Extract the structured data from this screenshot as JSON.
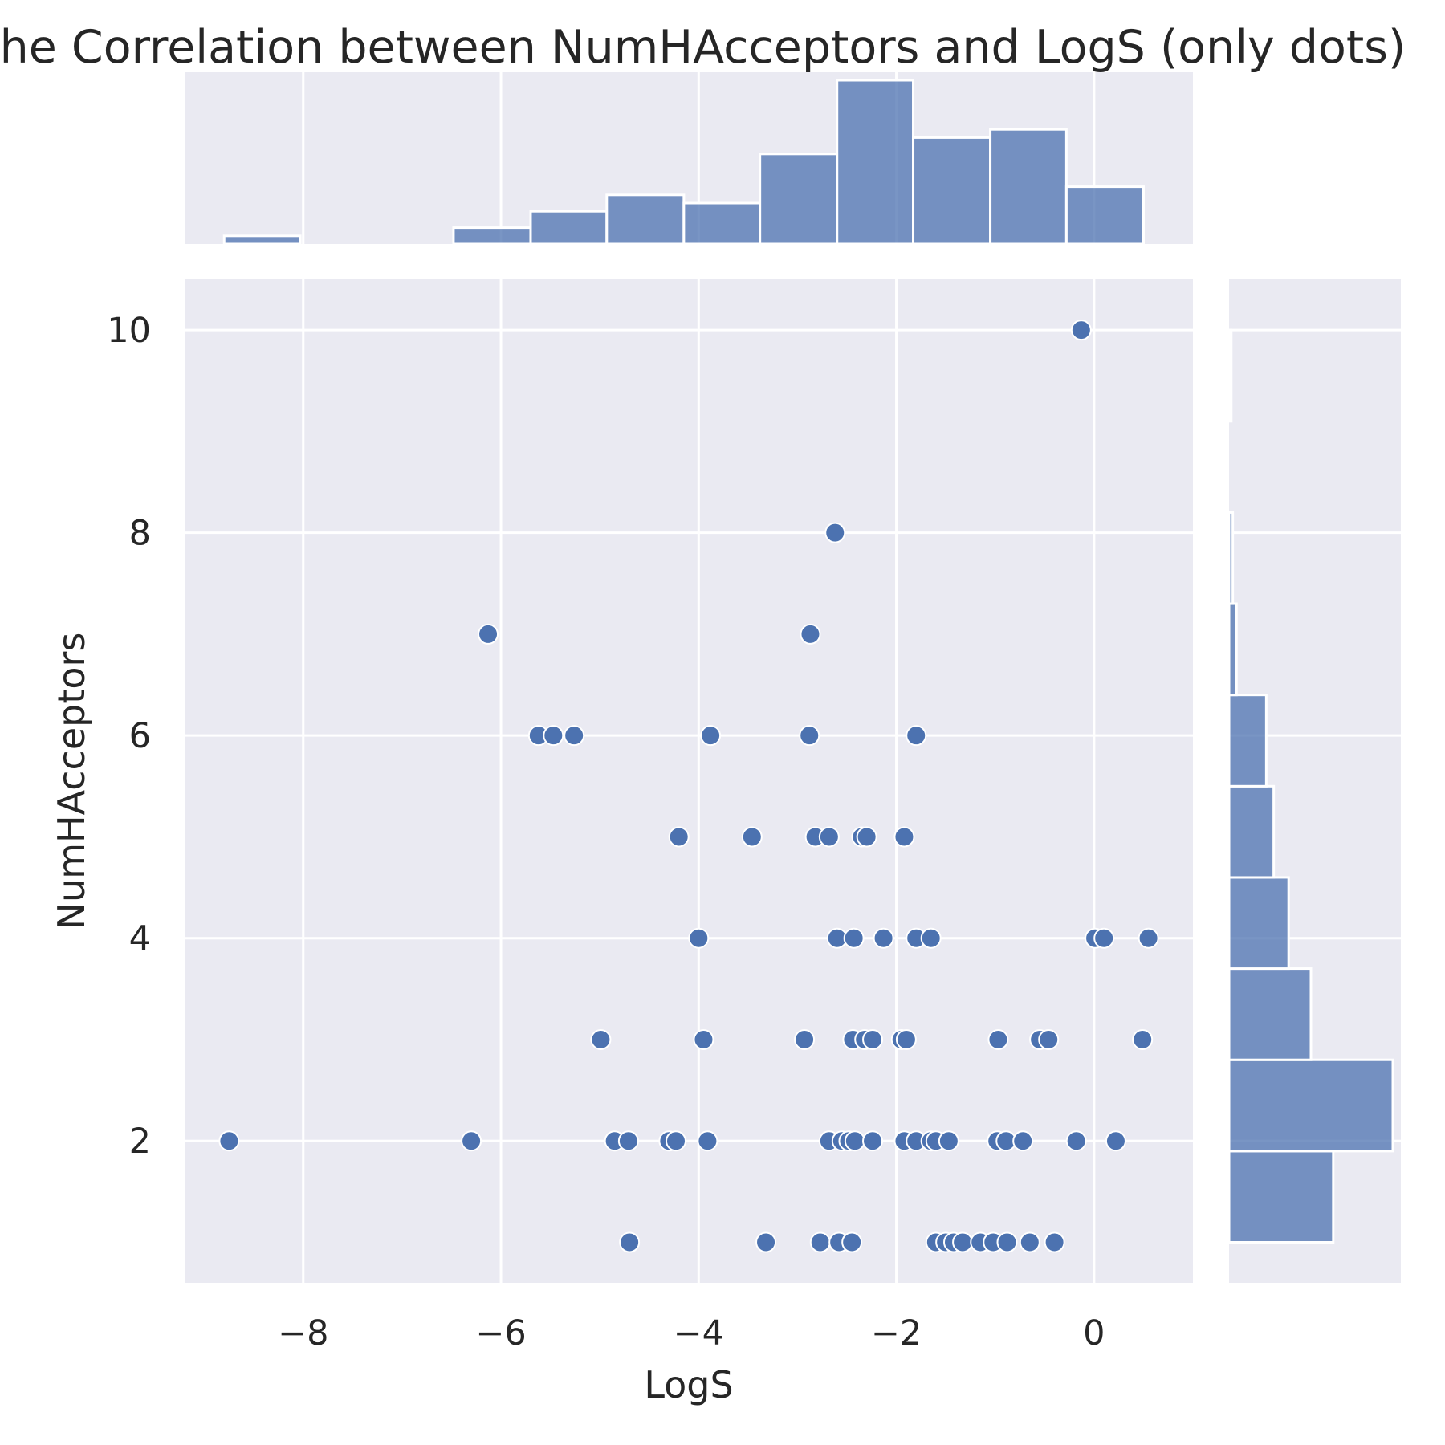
{
  "chart_data": {
    "type": "scatter",
    "title": "The Correlation between NumHAcceptors and LogS (only dots)",
    "xlabel": "LogS",
    "ylabel": "NumHAcceptors",
    "xlim": [
      -9.2,
      1.0
    ],
    "ylim": [
      0.6,
      10.5
    ],
    "xticks": [
      -8,
      -6,
      -4,
      -2,
      0
    ],
    "xtick_labels": [
      "−8",
      "−6",
      "−4",
      "−2",
      "0"
    ],
    "yticks": [
      2,
      4,
      6,
      8,
      10
    ],
    "ytick_labels": [
      "2",
      "4",
      "6",
      "8",
      "10"
    ],
    "grid": true,
    "colors": {
      "point": "#4c72b0",
      "bar": "#4c72b0",
      "background": "#eaeaf2",
      "grid": "#ffffff"
    },
    "points": [
      [
        -0.13,
        10
      ],
      [
        -2.62,
        8
      ],
      [
        -6.13,
        7
      ],
      [
        -2.87,
        7
      ],
      [
        -5.62,
        6
      ],
      [
        -5.47,
        6
      ],
      [
        -5.26,
        6
      ],
      [
        -3.88,
        6
      ],
      [
        -2.88,
        6
      ],
      [
        -1.8,
        6
      ],
      [
        -4.2,
        5
      ],
      [
        -3.46,
        5
      ],
      [
        -2.82,
        5
      ],
      [
        -2.68,
        5
      ],
      [
        -2.35,
        5
      ],
      [
        -2.3,
        5
      ],
      [
        -1.92,
        5
      ],
      [
        -4.0,
        4
      ],
      [
        -2.6,
        4
      ],
      [
        -2.43,
        4
      ],
      [
        -2.13,
        4
      ],
      [
        -1.8,
        4
      ],
      [
        -1.65,
        4
      ],
      [
        0.01,
        4
      ],
      [
        0.1,
        4
      ],
      [
        0.55,
        4
      ],
      [
        -4.99,
        3
      ],
      [
        -3.95,
        3
      ],
      [
        -2.93,
        3
      ],
      [
        -2.44,
        3
      ],
      [
        -2.32,
        3
      ],
      [
        -2.24,
        3
      ],
      [
        -1.95,
        3
      ],
      [
        -1.9,
        3
      ],
      [
        -0.97,
        3
      ],
      [
        -0.55,
        3
      ],
      [
        -0.46,
        3
      ],
      [
        0.49,
        3
      ],
      [
        -8.75,
        2
      ],
      [
        -6.3,
        2
      ],
      [
        -4.85,
        2
      ],
      [
        -4.71,
        2
      ],
      [
        -4.3,
        2
      ],
      [
        -4.23,
        2
      ],
      [
        -3.91,
        2
      ],
      [
        -2.68,
        2
      ],
      [
        -2.55,
        2
      ],
      [
        -2.48,
        2
      ],
      [
        -2.42,
        2
      ],
      [
        -2.24,
        2
      ],
      [
        -1.92,
        2
      ],
      [
        -1.8,
        2
      ],
      [
        -1.65,
        2
      ],
      [
        -1.6,
        2
      ],
      [
        -1.47,
        2
      ],
      [
        -0.98,
        2
      ],
      [
        -0.89,
        2
      ],
      [
        -0.72,
        2
      ],
      [
        -0.18,
        2
      ],
      [
        0.22,
        2
      ],
      [
        -4.7,
        1
      ],
      [
        -3.32,
        1
      ],
      [
        -2.77,
        1
      ],
      [
        -2.58,
        1
      ],
      [
        -2.45,
        1
      ],
      [
        -1.6,
        1
      ],
      [
        -1.5,
        1
      ],
      [
        -1.42,
        1
      ],
      [
        -1.33,
        1
      ],
      [
        -1.15,
        1
      ],
      [
        -1.02,
        1
      ],
      [
        -0.88,
        1
      ],
      [
        -0.65,
        1
      ],
      [
        -0.4,
        1
      ]
    ],
    "marginal_x": {
      "bin_edges": [
        -8.8,
        -8.03,
        -7.25,
        -6.48,
        -5.7,
        -4.93,
        -4.15,
        -3.38,
        -2.6,
        -1.83,
        -1.05,
        -0.28,
        0.5
      ],
      "counts": [
        1,
        0,
        0,
        2,
        4,
        6,
        5,
        11,
        20,
        13,
        14,
        7
      ]
    },
    "marginal_y": {
      "bin_edges": [
        1,
        1.9,
        2.8,
        3.7,
        4.6,
        5.5,
        6.4,
        7.3,
        8.2,
        9.1,
        10
      ],
      "counts": [
        14,
        22,
        11,
        8,
        6,
        5,
        1,
        0.5,
        0,
        0.3
      ]
    }
  }
}
